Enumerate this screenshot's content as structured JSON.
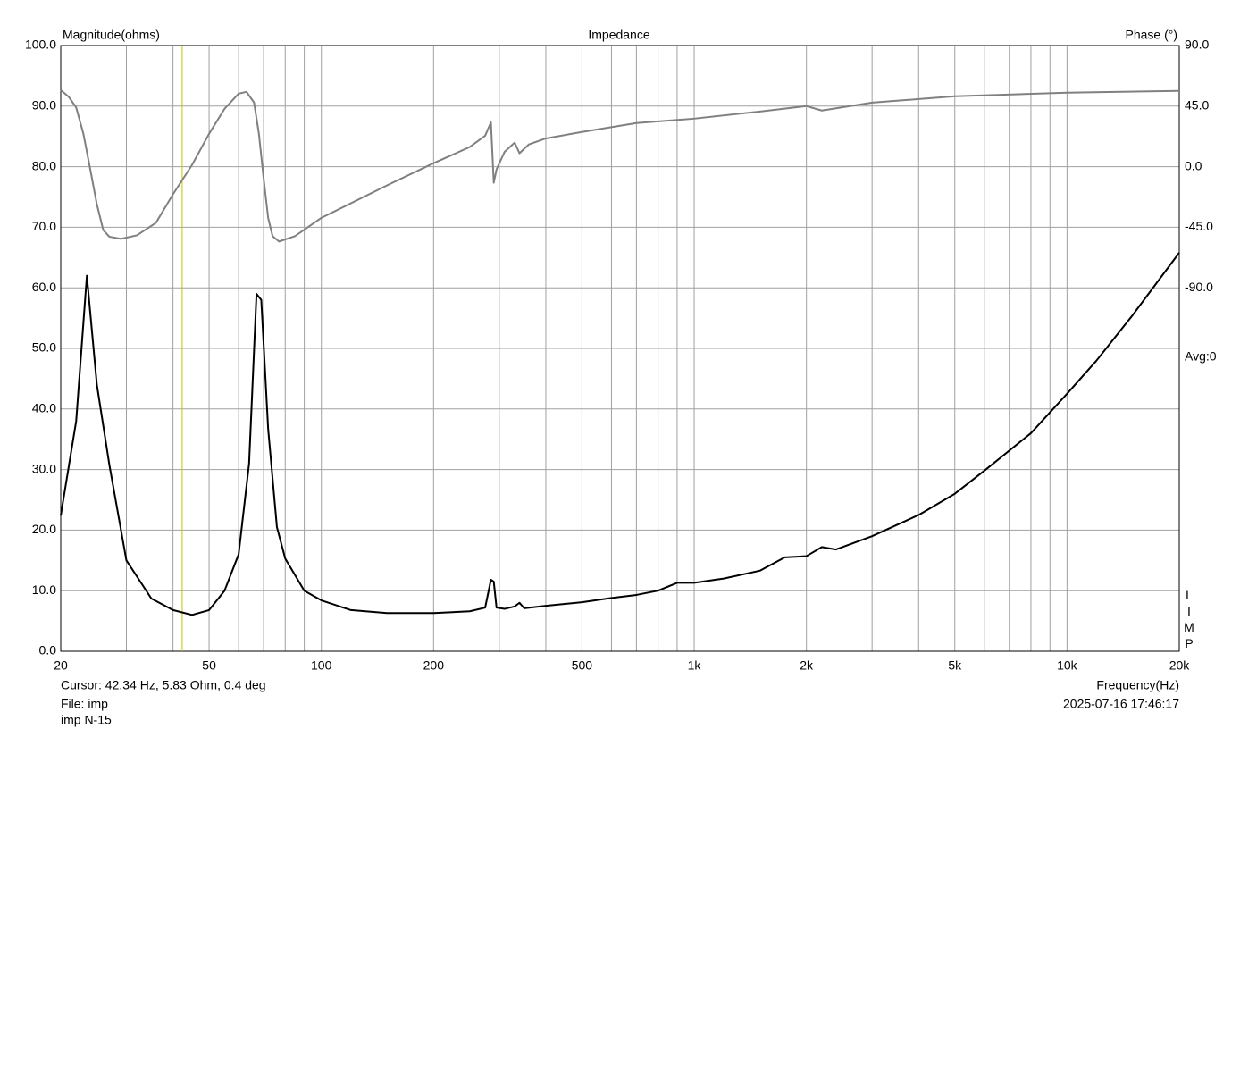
{
  "chart_data": {
    "type": "line",
    "title": "Impedance",
    "ylabel": "Magnitude(ohms)",
    "y2label": "Phase (°)",
    "xlabel": "Frequency(Hz)",
    "cursor_text": "Cursor: 42.34 Hz, 5.83 Ohm, 0.4 deg",
    "cursor_x": 42.34,
    "cursor_color": "#c8c000",
    "file_text": "File: imp",
    "file_name": "imp N-15",
    "timestamp": "2025-07-16 17:46:17",
    "avg_label": "Avg:0",
    "program_label": "LIMP",
    "xscale": "log",
    "grid": true,
    "xlim": [
      20,
      20000
    ],
    "xticks": [
      20,
      50,
      100,
      200,
      500,
      {
        "value": 1000,
        "label": "1k"
      },
      {
        "value": 2000,
        "label": "2k"
      },
      {
        "value": 5000,
        "label": "5k"
      },
      {
        "value": 10000,
        "label": "10k"
      },
      {
        "value": 20000,
        "label": "20k"
      }
    ],
    "xminor": [
      30,
      40,
      60,
      70,
      80,
      90,
      300,
      400,
      600,
      700,
      800,
      900,
      3000,
      4000,
      6000,
      7000,
      8000,
      9000
    ],
    "ylim": [
      0,
      100
    ],
    "yticks": [
      {
        "value": 0,
        "label": "0.0"
      },
      {
        "value": 10,
        "label": "10.0"
      },
      {
        "value": 20,
        "label": "20.0"
      },
      {
        "value": 30,
        "label": "30.0"
      },
      {
        "value": 40,
        "label": "40.0"
      },
      {
        "value": 50,
        "label": "50.0"
      },
      {
        "value": 60,
        "label": "60.0"
      },
      {
        "value": 70,
        "label": "70.0"
      },
      {
        "value": 80,
        "label": "80.0"
      },
      {
        "value": 90,
        "label": "90.0"
      },
      {
        "value": 100,
        "label": "100.0"
      }
    ],
    "y2lim": [
      -360,
      90
    ],
    "y2ticks": [
      {
        "value": 90,
        "label": "90.0"
      },
      {
        "value": 45,
        "label": "45.0"
      },
      {
        "value": 0,
        "label": "0.0"
      },
      {
        "value": -45,
        "label": "-45.0"
      },
      {
        "value": -90,
        "label": "-90.0"
      }
    ],
    "series": [
      {
        "name": "Magnitude",
        "color": "#000000",
        "x": [
          20,
          22,
          23.5,
          25,
          27,
          30,
          35,
          40,
          45,
          50,
          55,
          60,
          64,
          67,
          69,
          72,
          76,
          80,
          90,
          100,
          120,
          150,
          200,
          250,
          275,
          285,
          290,
          295,
          310,
          330,
          340,
          350,
          400,
          500,
          600,
          700,
          800,
          900,
          1000,
          1200,
          1500,
          1750,
          2000,
          2200,
          2400,
          3000,
          4000,
          5000,
          6000,
          8000,
          10000,
          12000,
          15000,
          20000
        ],
        "values": [
          22.4,
          38,
          62,
          44,
          30.8,
          15,
          8.7,
          6.8,
          6.0,
          6.8,
          10,
          16,
          31,
          59,
          58,
          36.7,
          20.5,
          15.3,
          10,
          8.4,
          6.8,
          6.3,
          6.3,
          6.6,
          7.2,
          11.8,
          11.5,
          7.2,
          7.0,
          7.4,
          8.0,
          7.1,
          7.5,
          8.1,
          8.8,
          9.3,
          10.0,
          11.3,
          11.3,
          12.0,
          13.3,
          15.5,
          15.7,
          17.2,
          16.8,
          19.0,
          22.5,
          26.0,
          29.8,
          36,
          42.5,
          48,
          55.5,
          65.8
        ]
      },
      {
        "name": "Phase",
        "color": "#808080",
        "axis": "y2",
        "x": [
          20,
          21,
          22,
          23,
          24,
          25,
          26,
          27,
          29,
          32,
          36,
          40,
          45,
          50,
          55,
          60,
          63,
          66,
          68,
          70,
          72,
          74,
          77,
          85,
          100,
          150,
          200,
          250,
          275,
          285,
          290,
          295,
          310,
          330,
          340,
          360,
          400,
          500,
          700,
          1000,
          1500,
          2000,
          2200,
          3000,
          5000,
          10000,
          20000
        ],
        "values": [
          56.9,
          52,
          44,
          24.5,
          -2,
          -28,
          -47,
          -52,
          -53.6,
          -51,
          -41.7,
          -20.5,
          1.3,
          24.5,
          43,
          54.3,
          55.6,
          47.6,
          24.5,
          -8.6,
          -38,
          -51.6,
          -55.6,
          -51.6,
          -38,
          -13.9,
          2.6,
          14.6,
          23,
          33,
          -11.9,
          -2,
          11,
          17.9,
          10,
          16.5,
          21,
          25.8,
          32.4,
          35.7,
          41,
          45,
          41.7,
          47.6,
          52.3,
          55,
          56.3
        ]
      }
    ]
  }
}
